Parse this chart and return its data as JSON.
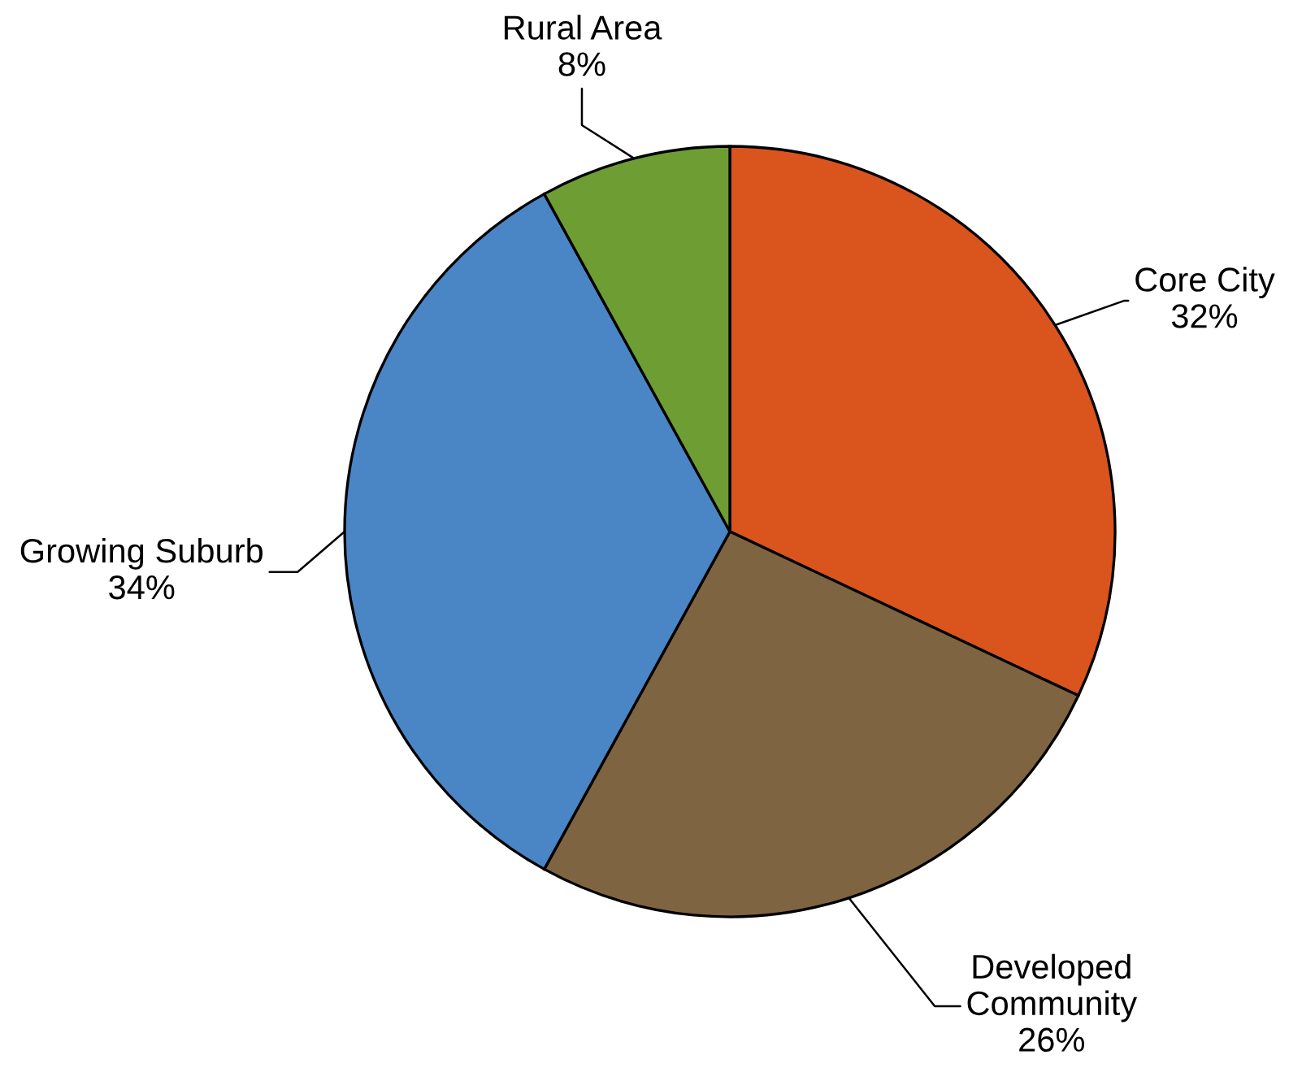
{
  "chart_data": {
    "type": "pie",
    "categories": [
      "Core City",
      "Developed Community",
      "Growing Suburb",
      "Rural Area"
    ],
    "values": [
      32,
      26,
      34,
      8
    ],
    "colors": [
      "#da541e",
      "#7f6441",
      "#4a86c5",
      "#6e9e33"
    ],
    "value_labels": [
      "32%",
      "26%",
      "34%",
      "8%"
    ]
  }
}
